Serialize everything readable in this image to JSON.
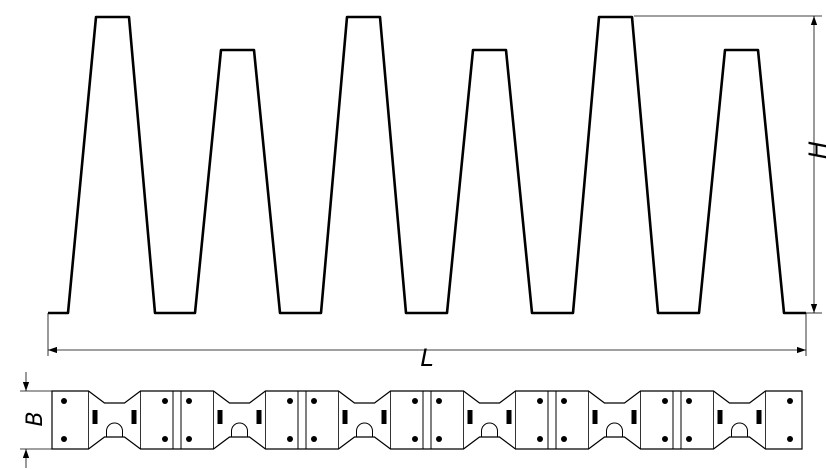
{
  "dimensions": {
    "height_label": "H",
    "length_label": "L",
    "width_label": "B"
  },
  "profile": {
    "tall_ribs": 3,
    "short_ribs": 3
  },
  "plan_view": {
    "segments": 6
  },
  "colors": {
    "line": "#000000",
    "background": "#ffffff"
  }
}
